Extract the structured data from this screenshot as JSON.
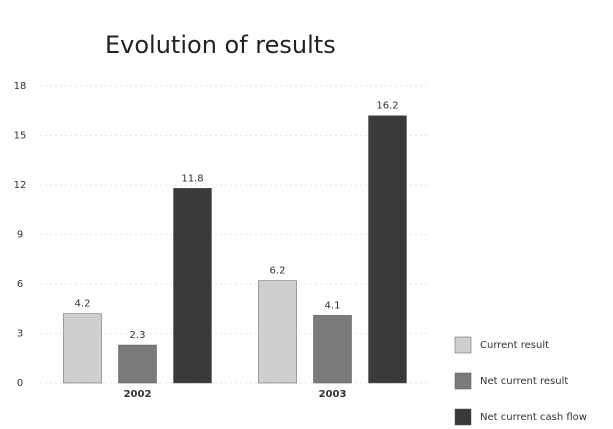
{
  "chart_data": {
    "type": "bar",
    "title": "Evolution of results",
    "categories": [
      "2002",
      "2003"
    ],
    "series": [
      {
        "name": "Current result",
        "color": "#cfcfcf",
        "values": [
          4.2,
          6.2
        ]
      },
      {
        "name": "Net current result",
        "color": "#7a7a7a",
        "values": [
          2.3,
          4.1
        ]
      },
      {
        "name": "Net current cash flow",
        "color": "#3a3a3a",
        "values": [
          11.8,
          16.2
        ]
      }
    ],
    "ylim": [
      0,
      18
    ],
    "yticks": [
      0,
      3,
      6,
      9,
      12,
      15,
      18
    ],
    "grid": true,
    "legend": "bottom-right"
  }
}
